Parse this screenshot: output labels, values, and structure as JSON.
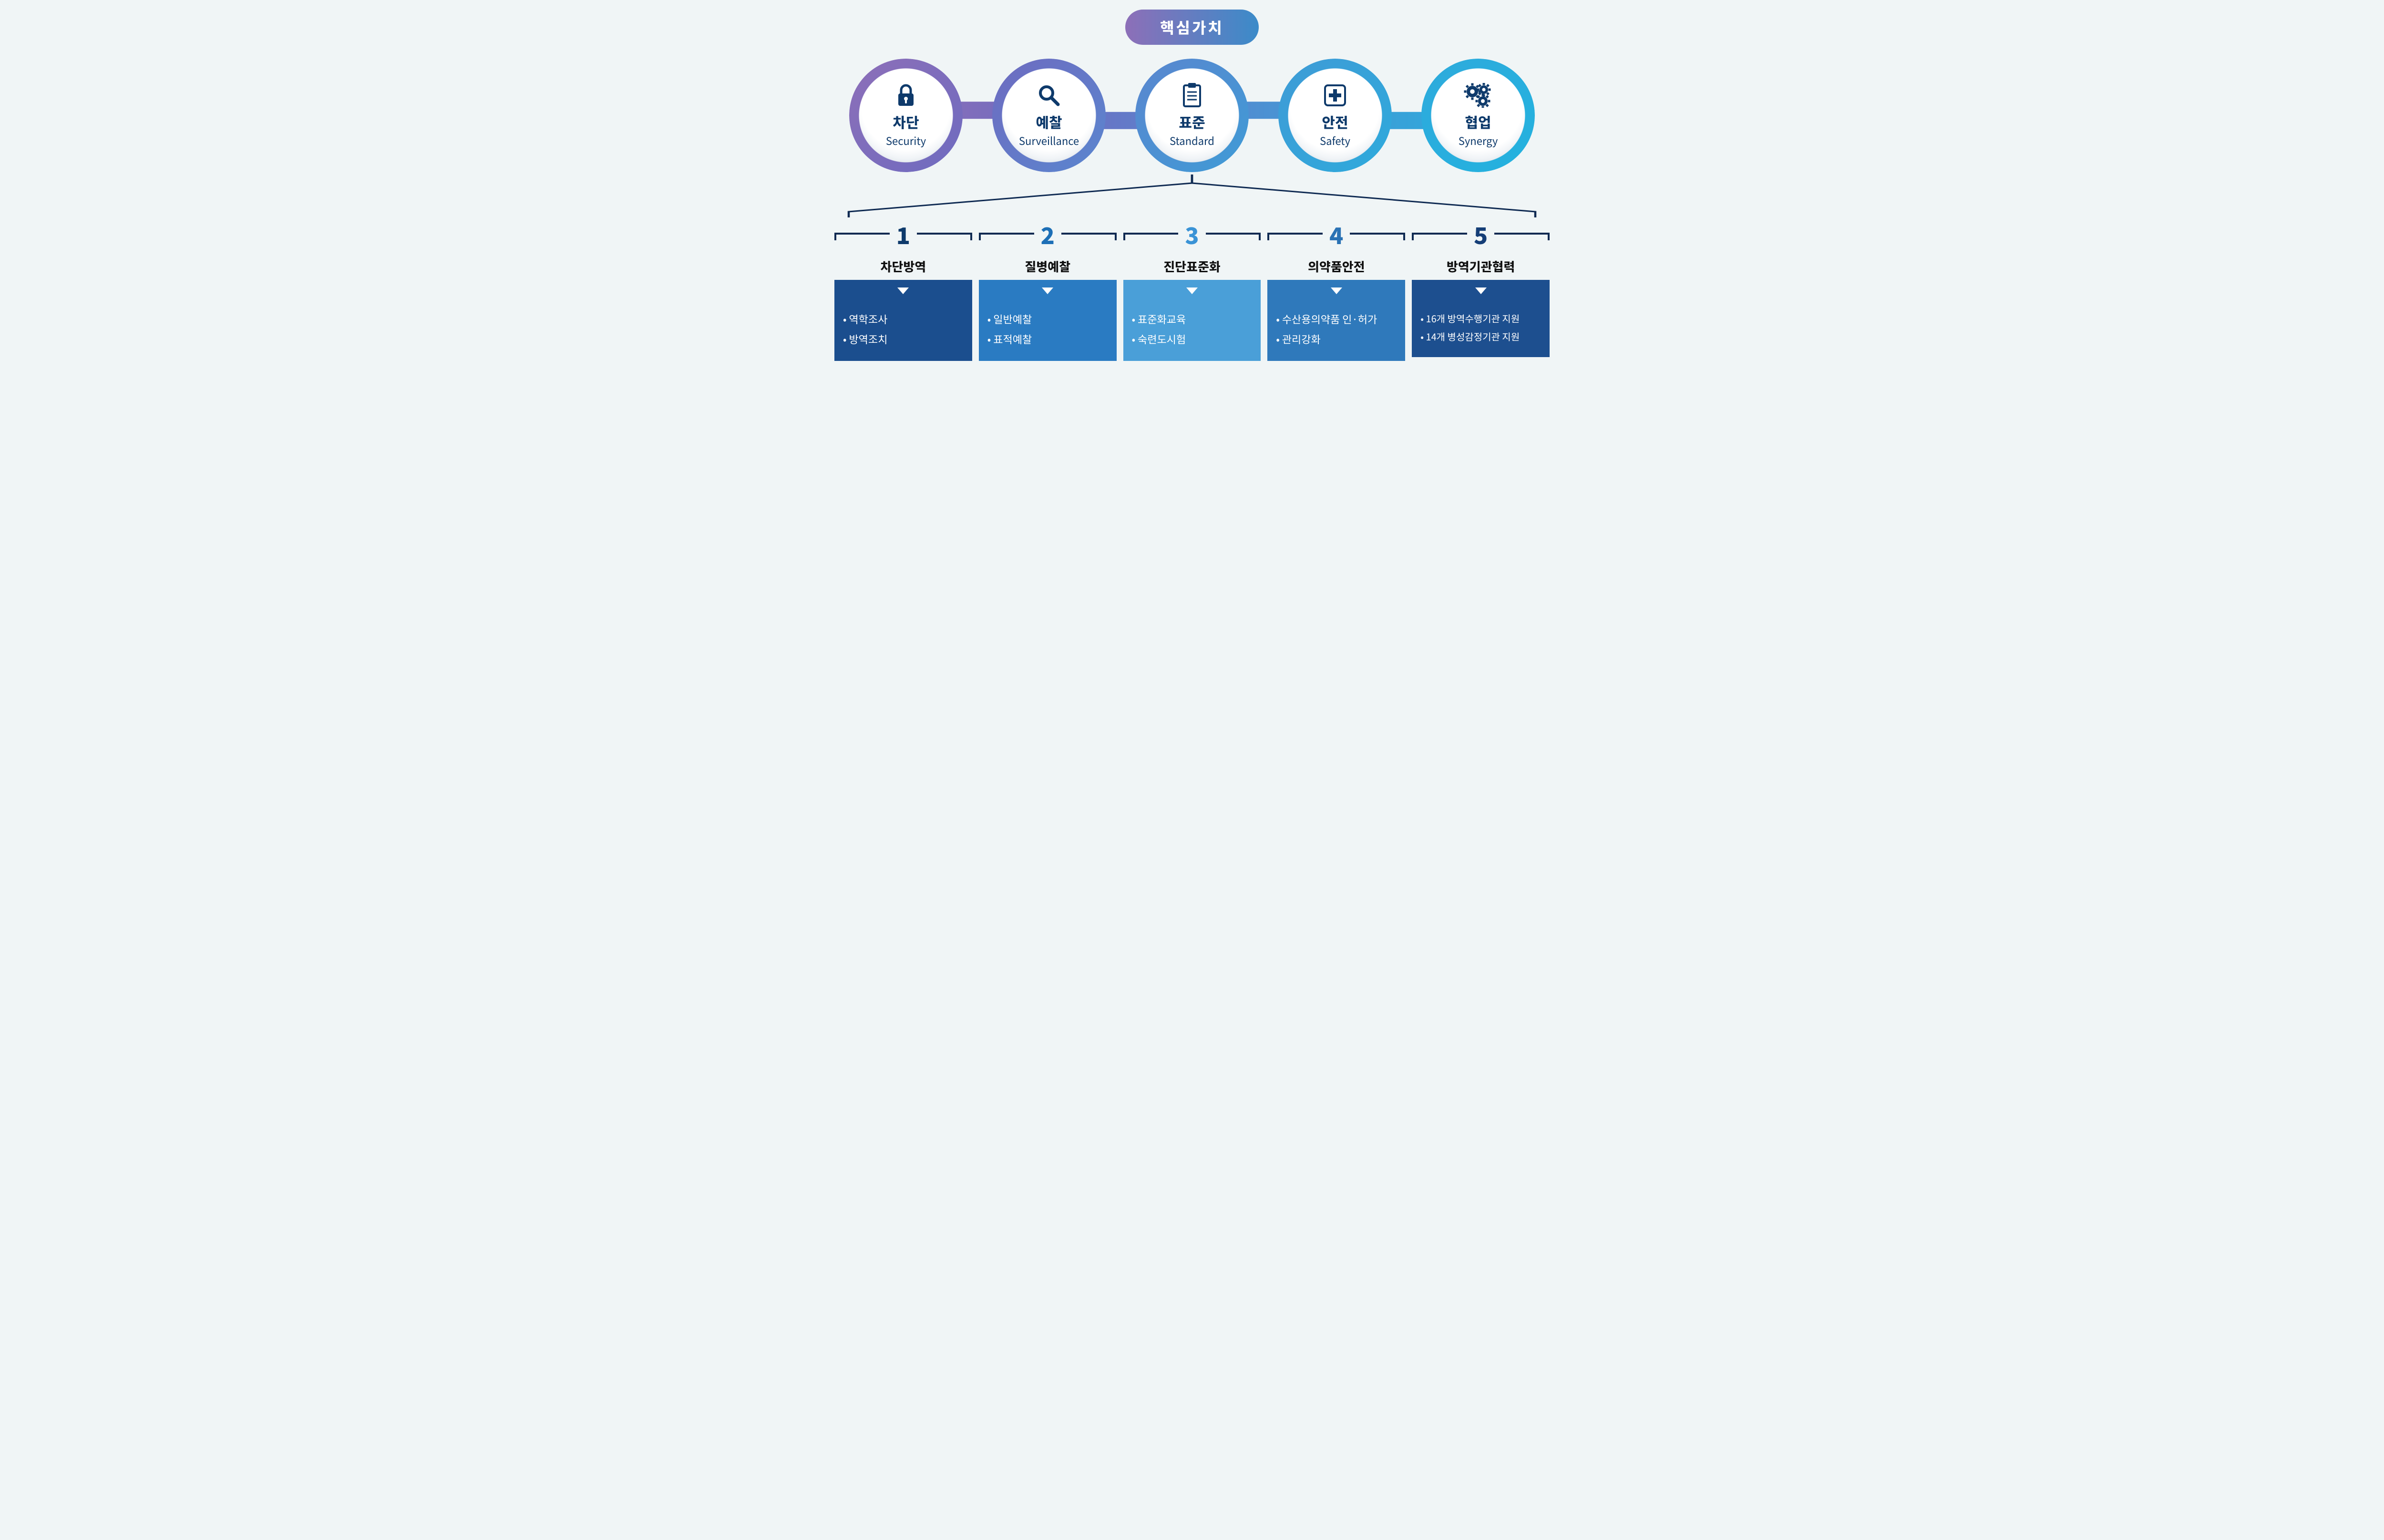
{
  "page": {
    "background": "#f0f5f6",
    "ink": "#0e3a6b"
  },
  "title": {
    "text": "핵심가치",
    "gradient_from": "#8d6fb8",
    "gradient_to": "#3b8bc9",
    "text_color": "#ffffff",
    "font_size": 32
  },
  "circles": {
    "diameter": 218,
    "ring_width": 10,
    "positions_pct": [
      10,
      30,
      50,
      70,
      90
    ],
    "items": [
      {
        "icon": "lock",
        "kr": "차단",
        "en": "Security",
        "ring_from": "#8d6fb8",
        "ring_to": "#6e6bc0"
      },
      {
        "icon": "magnifier",
        "kr": "예찰",
        "en": "Surveillance",
        "ring_from": "#6e6bc0",
        "ring_to": "#5a86cf"
      },
      {
        "icon": "clipboard",
        "kr": "표준",
        "en": "Standard",
        "ring_from": "#5a86cf",
        "ring_to": "#3f9bd6"
      },
      {
        "icon": "medical",
        "kr": "안전",
        "en": "Safety",
        "ring_from": "#3f9bd6",
        "ring_to": "#2eaadc"
      },
      {
        "icon": "gears",
        "kr": "협업",
        "en": "Synergy",
        "ring_from": "#2eaadc",
        "ring_to": "#23b2df"
      }
    ],
    "wave_height": 36,
    "waves": [
      {
        "from_pct": 10,
        "to_pct": 30,
        "dir": "up",
        "grad_from": "#8d6fb8",
        "grad_to": "#6e6bc0"
      },
      {
        "from_pct": 30,
        "to_pct": 50,
        "dir": "down",
        "grad_from": "#6e6bc0",
        "grad_to": "#5a86cf"
      },
      {
        "from_pct": 50,
        "to_pct": 70,
        "dir": "up",
        "grad_from": "#5a86cf",
        "grad_to": "#3f9bd6"
      },
      {
        "from_pct": 70,
        "to_pct": 90,
        "dir": "down",
        "grad_from": "#3f9bd6",
        "grad_to": "#2eaadc"
      }
    ]
  },
  "connector": {
    "stroke": "#0f2a52",
    "stroke_width": 3
  },
  "columns": {
    "number_font_size": 48,
    "title_font_size": 26,
    "item_font_size": 22,
    "bracket_color": "#0f2a52",
    "items": [
      {
        "num": "1",
        "num_color": "#0e3a6b",
        "title": "차단방역",
        "body_bg": "#1b4e8e",
        "bullets": [
          "역학조사",
          "방역조치"
        ]
      },
      {
        "num": "2",
        "num_color": "#1d6fb6",
        "title": "질병예찰",
        "body_bg": "#2a7bc2",
        "bullets": [
          "일반예찰",
          "표적예찰"
        ]
      },
      {
        "num": "3",
        "num_color": "#3a93d6",
        "title": "진단표준화",
        "body_bg": "#4a9fd8",
        "bullets": [
          "표준화교육",
          "숙련도시험"
        ]
      },
      {
        "num": "4",
        "num_color": "#2a72b4",
        "title": "의약품안전",
        "body_bg": "#2f79bb",
        "bullets": [
          "수산용의약품 인·허가",
          "관리강화"
        ]
      },
      {
        "num": "5",
        "num_color": "#153e77",
        "title": "방역기관협력",
        "body_bg": "#1d4f8f",
        "bullets": [
          "16개 방역수행기관 지원",
          "14개 병성감정기관 지원"
        ]
      }
    ]
  }
}
